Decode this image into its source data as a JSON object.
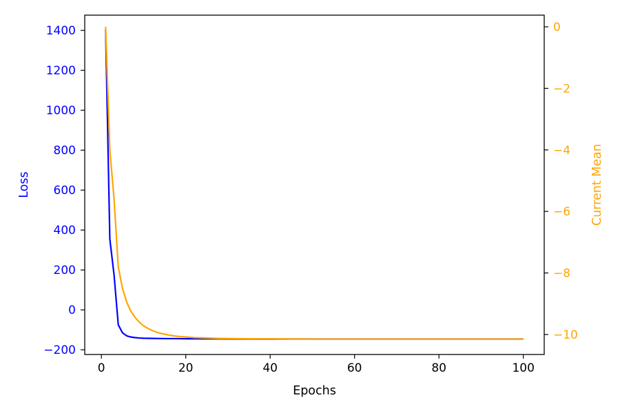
{
  "chart_data": {
    "type": "line",
    "title": "",
    "xlabel": "Epochs",
    "ylabel_left": "Loss",
    "ylabel_right": "Current Mean",
    "xlim": [
      -3.95,
      104.95
    ],
    "ylim_left": [
      -223.5,
      1476.5
    ],
    "ylim_right": [
      -10.65,
      0.38
    ],
    "xticks": [
      0,
      20,
      40,
      60,
      80,
      100
    ],
    "xtick_labels": [
      "0",
      "20",
      "40",
      "60",
      "80",
      "100"
    ],
    "yticks_left": [
      -200,
      0,
      200,
      400,
      600,
      800,
      1000,
      1200,
      1400
    ],
    "ytick_labels_left": [
      "−200",
      "0",
      "200",
      "400",
      "600",
      "800",
      "1000",
      "1200",
      "1400"
    ],
    "yticks_right": [
      0,
      -2,
      -4,
      -6,
      -8,
      -10
    ],
    "ytick_labels_right": [
      "0",
      "−2",
      "−4",
      "−6",
      "−8",
      "−10"
    ],
    "grid": false,
    "colors": {
      "loss": "#0000ff",
      "mean": "#ffa500",
      "axes": "#000000"
    },
    "series": [
      {
        "axis": "left",
        "x": [
          1,
          2,
          3,
          4,
          5,
          6,
          7,
          8,
          9,
          10,
          12,
          14,
          16,
          18,
          20,
          25,
          30,
          40,
          50,
          60,
          70,
          80,
          90,
          100
        ],
        "values": [
          1405,
          355,
          175,
          -75,
          -115,
          -130,
          -136,
          -139,
          -141,
          -142,
          -143,
          -143.5,
          -144,
          -144,
          -144.5,
          -145,
          -145.5,
          -146,
          -146,
          -146,
          -146,
          -146,
          -146,
          -146
        ]
      },
      {
        "axis": "right",
        "x": [
          1,
          2,
          3,
          4,
          5,
          6,
          7,
          8,
          9,
          10,
          11,
          12,
          13,
          14,
          15,
          16,
          17,
          18,
          19,
          20,
          22,
          24,
          26,
          28,
          30,
          35,
          40,
          50,
          60,
          70,
          80,
          90,
          100
        ],
        "values": [
          0,
          -4.0,
          -5.6,
          -7.8,
          -8.5,
          -8.95,
          -9.25,
          -9.45,
          -9.6,
          -9.72,
          -9.8,
          -9.87,
          -9.92,
          -9.96,
          -9.99,
          -10.02,
          -10.04,
          -10.06,
          -10.07,
          -10.08,
          -10.1,
          -10.11,
          -10.12,
          -10.13,
          -10.13,
          -10.14,
          -10.14,
          -10.15,
          -10.15,
          -10.15,
          -10.15,
          -10.15,
          -10.15
        ]
      }
    ]
  }
}
